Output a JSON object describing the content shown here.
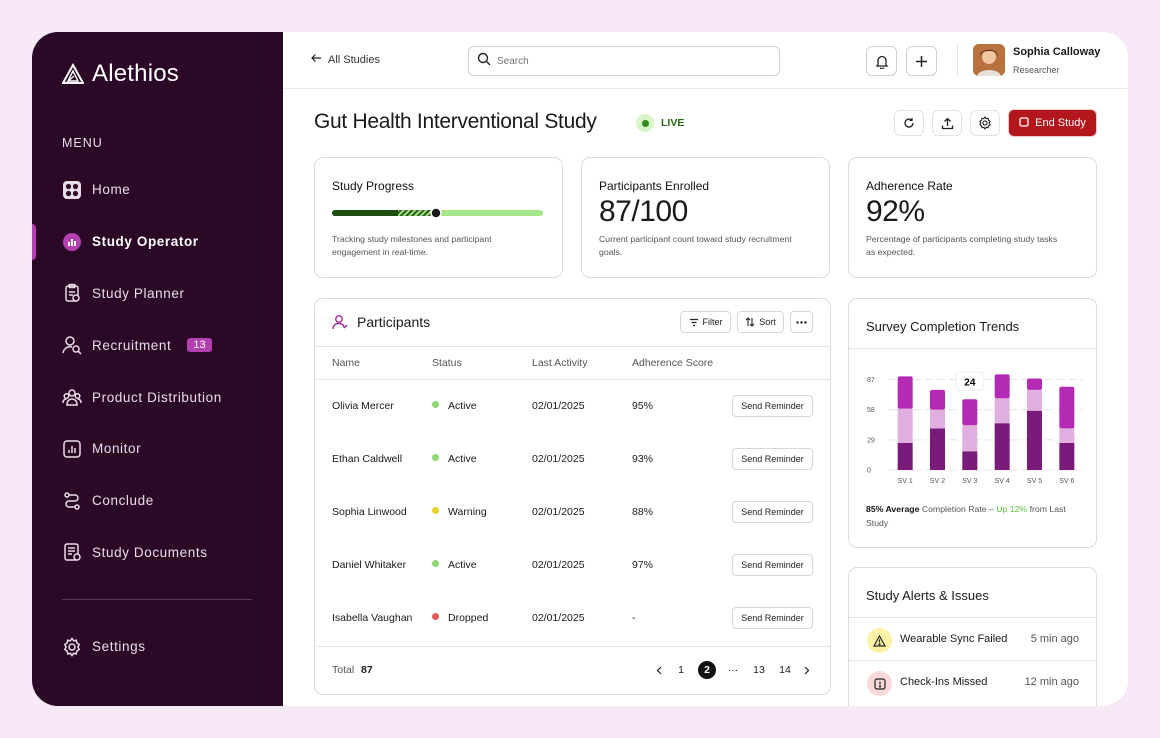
{
  "app": {
    "name": "Alethios"
  },
  "sidebar": {
    "menu_title": "MENU",
    "items": [
      {
        "label": "Home",
        "icon": "grid-icon",
        "active": false
      },
      {
        "label": "Study Operator",
        "icon": "chart-circle-icon",
        "active": true
      },
      {
        "label": "Study Planner",
        "icon": "clipboard-icon",
        "active": false
      },
      {
        "label": "Recruitment",
        "icon": "user-search-icon",
        "active": false,
        "badge": "13"
      },
      {
        "label": "Product Distribution",
        "icon": "users-icon",
        "active": false
      },
      {
        "label": "Monitor",
        "icon": "bar-chart-icon",
        "active": false
      },
      {
        "label": "Conclude",
        "icon": "route-icon",
        "active": false
      },
      {
        "label": "Study Documents",
        "icon": "document-icon",
        "active": false
      }
    ],
    "settings_label": "Settings"
  },
  "topbar": {
    "back_label": "All Studies",
    "search_placeholder": "Search",
    "user_name": "Sophia Calloway",
    "user_role": "Researcher"
  },
  "header": {
    "title": "Gut Health Interventional Study",
    "status": "LIVE",
    "end_label": "End Study"
  },
  "stats": {
    "progress": {
      "title": "Study Progress",
      "value": 0.5,
      "desc": "Tracking study milestones and participant engagement in real-time."
    },
    "enrolled": {
      "title": "Participants Enrolled",
      "value": "87/100",
      "desc": "Current participant count toward study recruitment goals."
    },
    "adherence": {
      "title": "Adherence Rate",
      "value": "92%",
      "desc": "Percentage of participants completing study tasks as expected."
    }
  },
  "participants": {
    "title": "Participants",
    "filter_label": "Filter",
    "sort_label": "Sort",
    "columns": [
      "Name",
      "Status",
      "Last Activity",
      "Adherence Score"
    ],
    "rows": [
      {
        "name": "Olivia Mercer",
        "status": "Active",
        "status_color": "#8ed873",
        "last": "02/01/2025",
        "score": "95%",
        "action": "Send Reminder"
      },
      {
        "name": "Ethan Caldwell",
        "status": "Active",
        "status_color": "#8ed873",
        "last": "02/01/2025",
        "score": "93%",
        "action": "Send Reminder"
      },
      {
        "name": "Sophia Linwood",
        "status": "Warning",
        "status_color": "#e8d32a",
        "last": "02/01/2025",
        "score": "88%",
        "action": "Send Reminder"
      },
      {
        "name": "Daniel Whitaker",
        "status": "Active",
        "status_color": "#8ed873",
        "last": "02/01/2025",
        "score": "97%",
        "action": "Send Reminder"
      },
      {
        "name": "Isabella Vaughan",
        "status": "Dropped",
        "status_color": "#e25c5c",
        "last": "02/01/2025",
        "score": "-",
        "action": "Send Reminder"
      }
    ],
    "total_label": "Total",
    "total_value": "87",
    "pages": [
      "1",
      "2",
      "···",
      "13",
      "14"
    ],
    "current_page": "2"
  },
  "survey": {
    "title": "Survey Completion Trends",
    "tooltip": "24",
    "summary_bold": "85% Average",
    "summary_mid": " Completion Rate – ",
    "summary_up": "Up 12%",
    "summary_end": " from Last Study"
  },
  "chart_data": {
    "type": "bar",
    "categories": [
      "SV 1",
      "SV 2",
      "SV 3",
      "SV 4",
      "SV 5",
      "SV 6"
    ],
    "y_ticks": [
      0,
      29,
      58,
      87
    ],
    "ylim": [
      0,
      100
    ],
    "series": [
      {
        "values": [
          26,
          40,
          18,
          45,
          57,
          26
        ],
        "color": "#7a1a7a"
      },
      {
        "values": [
          33,
          18,
          25,
          24,
          20,
          14
        ],
        "color": "#e0aedf"
      },
      {
        "values": [
          31,
          19,
          25,
          23,
          11,
          40
        ],
        "color": "#b42ab4"
      }
    ]
  },
  "alerts": {
    "title": "Study Alerts & Issues",
    "items": [
      {
        "text": "Wearable Sync Failed",
        "time": "5 min ago",
        "icon": "warning-icon",
        "bg": "#fbf2a8"
      },
      {
        "text": "Check-Ins Missed",
        "time": "12 min ago",
        "icon": "alert-square-icon",
        "bg": "#fbd9d9"
      }
    ]
  }
}
